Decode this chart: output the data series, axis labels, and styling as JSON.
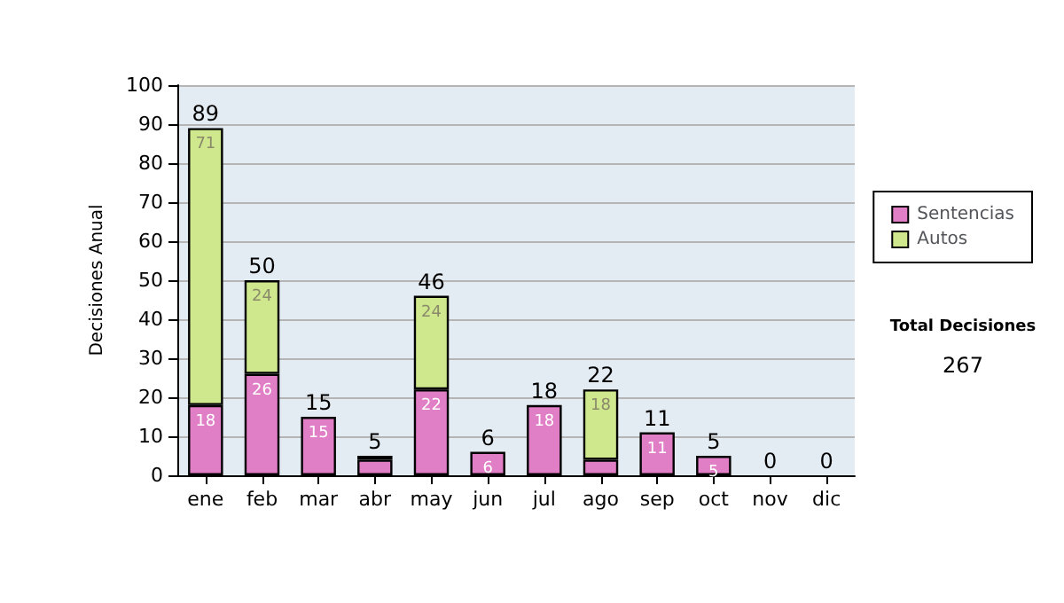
{
  "chart_data": {
    "type": "bar",
    "ylabel": "Decisiones Anual",
    "categories": [
      "ene",
      "feb",
      "mar",
      "abr",
      "may",
      "jun",
      "jul",
      "ago",
      "sep",
      "oct",
      "nov",
      "dic"
    ],
    "stacked": true,
    "series": [
      {
        "name": "Sentencias",
        "color": "#e07ec6",
        "values": [
          18,
          26,
          15,
          4,
          22,
          6,
          18,
          4,
          11,
          5,
          0,
          0
        ],
        "value_labels": [
          "18",
          "26",
          "15",
          null,
          "22",
          "6",
          "18",
          null,
          "11",
          "5",
          null,
          null
        ]
      },
      {
        "name": "Autos",
        "color": "#cfe88e",
        "values": [
          71,
          24,
          0,
          1,
          24,
          0,
          0,
          18,
          0,
          0,
          0,
          0
        ],
        "value_labels": [
          "71",
          "24",
          null,
          null,
          "24",
          null,
          null,
          "18",
          null,
          null,
          null,
          null
        ]
      }
    ],
    "totals": [
      "89",
      "50",
      "15",
      "5",
      "46",
      "6",
      "18",
      "22",
      "11",
      "5",
      "0",
      "0"
    ],
    "ylim": [
      0,
      100
    ],
    "yticks": [
      0,
      10,
      20,
      30,
      40,
      50,
      60,
      70,
      80,
      90,
      100
    ],
    "grid": "y",
    "legend": "right",
    "annotations": [
      "Total Decisiones",
      "267"
    ]
  }
}
